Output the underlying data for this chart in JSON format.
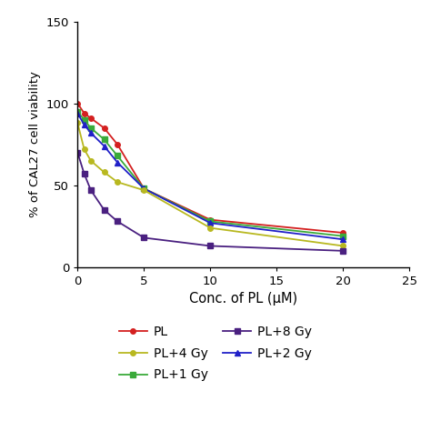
{
  "x": [
    0,
    0.5,
    1,
    2,
    3,
    5,
    10,
    20
  ],
  "series": [
    {
      "label": "PL",
      "color": "#d42020",
      "marker": "o",
      "markersize": 4,
      "y": [
        100,
        94,
        91,
        85,
        75,
        48,
        29,
        21
      ]
    },
    {
      "label": "PL+1 Gy",
      "color": "#3aaa3a",
      "marker": "s",
      "markersize": 4,
      "y": [
        95,
        90,
        85,
        78,
        68,
        48,
        28,
        19
      ]
    },
    {
      "label": "PL+2 Gy",
      "color": "#2020c8",
      "marker": "^",
      "markersize": 4,
      "y": [
        94,
        87,
        82,
        74,
        64,
        48,
        27,
        17
      ]
    },
    {
      "label": "PL+4 Gy",
      "color": "#b8b820",
      "marker": "o",
      "markersize": 4,
      "y": [
        88,
        72,
        65,
        58,
        52,
        47,
        24,
        13
      ]
    },
    {
      "label": "PL+8 Gy",
      "color": "#4a2080",
      "marker": "s",
      "markersize": 4,
      "y": [
        70,
        57,
        47,
        35,
        28,
        18,
        13,
        10
      ]
    }
  ],
  "xlabel": "Conc. of PL (μM)",
  "ylabel": "% of CAL27 cell viability",
  "xlim": [
    0,
    25
  ],
  "ylim": [
    0,
    150
  ],
  "xticks": [
    0,
    5,
    10,
    15,
    20,
    25
  ],
  "yticks": [
    0,
    50,
    100,
    150
  ],
  "legend_order": [
    0,
    3,
    1,
    4,
    2
  ],
  "figsize": [
    4.74,
    4.74
  ],
  "dpi": 100
}
